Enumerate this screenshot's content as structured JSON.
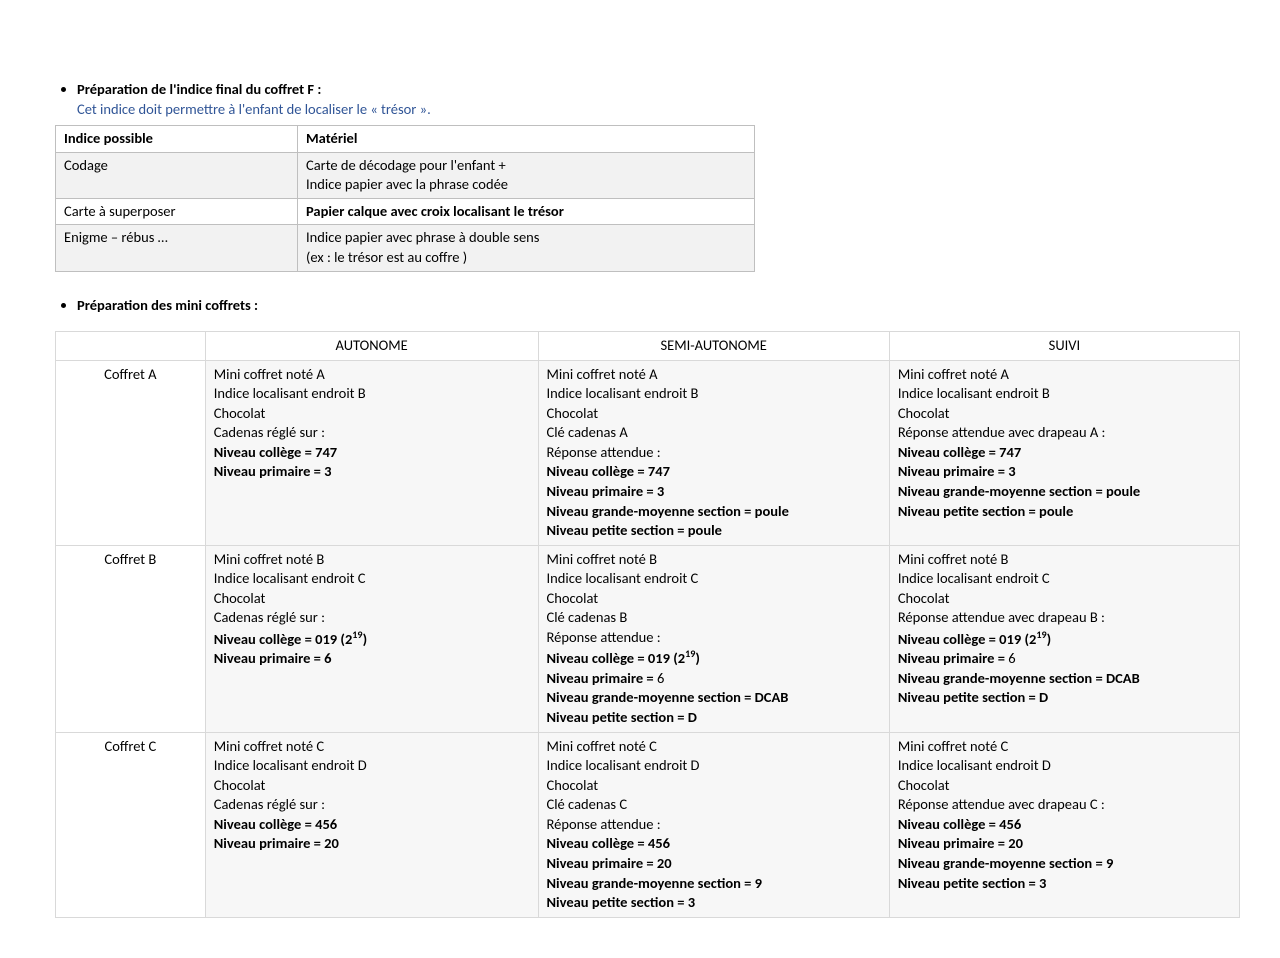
{
  "colors": {
    "text": "#000000",
    "link_blue": "#2f5496",
    "table_border": "#bfbfbf",
    "table2_border": "#d9d9d9",
    "shade_bg": "#f2f2f2",
    "shade2_bg": "#f7f7f7",
    "page_bg": "#ffffff"
  },
  "section1": {
    "title": "Préparation de l'indice final du coffret F :",
    "subtitle": "Cet indice doit permettre à l'enfant de localiser le « trésor ».",
    "headers": {
      "c0": "Indice possible",
      "c1": "Matériel"
    },
    "rows": [
      {
        "c0": "Codage",
        "c1": "Carte de décodage pour l'enfant +\nIndice papier avec la phrase codée",
        "shade": true
      },
      {
        "c0": "Carte à superposer",
        "c1": "Papier calque avec croix localisant le trésor",
        "bold_c1": true,
        "shade": false
      },
      {
        "c0": "Enigme – rébus …",
        "c1": "Indice papier avec phrase à double sens\n(ex : le trésor est au coffre )",
        "shade": true
      }
    ]
  },
  "section2": {
    "title": "Préparation des mini coffrets :",
    "headers": {
      "blank": "",
      "c1": "AUTONOME",
      "c2": "SEMI-AUTONOME",
      "c3": "SUIVI"
    },
    "rows": [
      {
        "label": "Coffret A",
        "autonome": [
          {
            "t": "Mini coffret noté A"
          },
          {
            "t": "Indice localisant endroit B"
          },
          {
            "t": "Chocolat"
          },
          {
            "t": "Cadenas réglé sur :"
          },
          {
            "t": "Niveau collège = 747",
            "b": true
          },
          {
            "t": "Niveau primaire = 3",
            "b": true
          }
        ],
        "semi": [
          {
            "t": "Mini coffret noté A"
          },
          {
            "t": "Indice localisant endroit B"
          },
          {
            "t": "Chocolat"
          },
          {
            "t": "Clé cadenas A"
          },
          {
            "t": "Réponse attendue :"
          },
          {
            "t": "Niveau collège = 747",
            "b": true
          },
          {
            "t": "Niveau primaire = 3",
            "b": true
          },
          {
            "t": "Niveau grande-moyenne section = poule",
            "b": true
          },
          {
            "t": "Niveau petite section = poule",
            "b": true
          }
        ],
        "suivi": [
          {
            "t": "Mini coffret noté A"
          },
          {
            "t": "Indice localisant endroit B"
          },
          {
            "t": "Chocolat"
          },
          {
            "t": "Réponse attendue avec drapeau A :"
          },
          {
            "t": "Niveau collège = 747",
            "b": true
          },
          {
            "t": "Niveau primaire = 3",
            "b": true
          },
          {
            "t": "Niveau grande-moyenne section = poule",
            "b": true
          },
          {
            "t": "Niveau petite section = poule",
            "b": true
          }
        ]
      },
      {
        "label": "Coffret B",
        "autonome": [
          {
            "t": "Mini coffret noté B"
          },
          {
            "t": "Indice localisant endroit C"
          },
          {
            "t": "Chocolat"
          },
          {
            "t": "Cadenas réglé sur :"
          },
          {
            "html": "Niveau collège = 019 (2<sup>19</sup>)",
            "b": true
          },
          {
            "t": "Niveau primaire = 6",
            "b": true
          }
        ],
        "semi": [
          {
            "t": "Mini coffret noté B"
          },
          {
            "t": "Indice localisant endroit C"
          },
          {
            "t": "Chocolat"
          },
          {
            "t": "Clé cadenas B"
          },
          {
            "t": "Réponse attendue :"
          },
          {
            "html": "<span class=\"bold\">Niveau collège = 019 (2<sup>19</sup>)</span>"
          },
          {
            "html": "<span class=\"bold\">Niveau primaire =</span> 6"
          },
          {
            "t": "Niveau grande-moyenne section = DCAB",
            "b": true
          },
          {
            "t": "Niveau petite section = D",
            "b": true
          }
        ],
        "suivi": [
          {
            "t": "Mini coffret noté B"
          },
          {
            "t": "Indice localisant endroit C"
          },
          {
            "t": "Chocolat"
          },
          {
            "t": "Réponse attendue avec drapeau B :"
          },
          {
            "html": "<span class=\"bold\">Niveau collège = 019 (2<sup>19</sup>)</span>"
          },
          {
            "html": "<span class=\"bold\">Niveau primaire =</span> 6"
          },
          {
            "t": "Niveau grande-moyenne section = DCAB",
            "b": true
          },
          {
            "t": "Niveau petite section = D",
            "b": true
          }
        ]
      },
      {
        "label": "Coffret C",
        "autonome": [
          {
            "t": "Mini coffret noté C"
          },
          {
            "t": "Indice localisant endroit D"
          },
          {
            "t": "Chocolat"
          },
          {
            "t": "Cadenas réglé sur :"
          },
          {
            "t": "Niveau collège = 456",
            "b": true
          },
          {
            "t": "Niveau primaire = 20",
            "b": true
          }
        ],
        "semi": [
          {
            "t": "Mini coffret noté C"
          },
          {
            "t": "Indice localisant endroit D"
          },
          {
            "t": "Chocolat"
          },
          {
            "t": "Clé cadenas C"
          },
          {
            "t": "Réponse attendue :"
          },
          {
            "t": "Niveau collège = 456",
            "b": true
          },
          {
            "t": "Niveau primaire = 20",
            "b": true
          },
          {
            "t": "Niveau grande-moyenne section = 9",
            "b": true
          },
          {
            "t": "Niveau petite section = 3",
            "b": true
          }
        ],
        "suivi": [
          {
            "t": "Mini coffret noté C"
          },
          {
            "t": "Indice localisant endroit D"
          },
          {
            "t": "Chocolat"
          },
          {
            "t": "Réponse attendue avec drapeau C :"
          },
          {
            "t": "Niveau collège = 456",
            "b": true
          },
          {
            "t": "Niveau primaire = 20",
            "b": true
          },
          {
            "t": "Niveau grande-moyenne section = 9",
            "b": true
          },
          {
            "t": "Niveau petite section = 3",
            "b": true
          }
        ]
      }
    ]
  }
}
